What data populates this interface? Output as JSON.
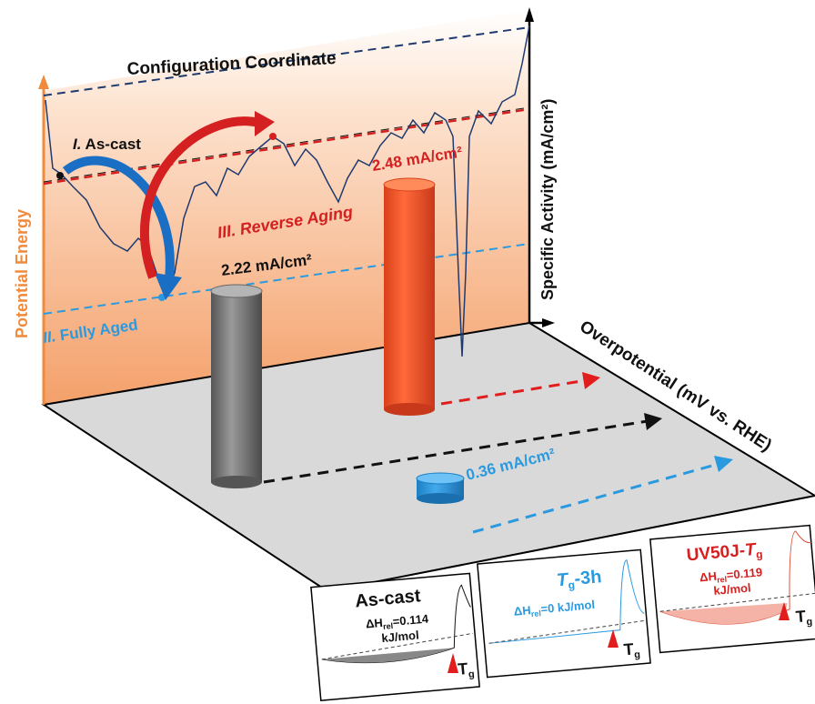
{
  "axes": {
    "top": "Configuration Coordinate",
    "left": "Potential Energy",
    "right": "Specific Activity (mA/cm²)",
    "floor": "Overpotential (mV vs. RHE)"
  },
  "states": [
    {
      "number": "I.",
      "label": "As-cast"
    },
    {
      "number": "II.",
      "label": "Fully Aged"
    },
    {
      "number": "III.",
      "label": "Reverse Aging"
    }
  ],
  "activities": [
    "2.48 mA/cm²",
    "2.22 mA/cm²",
    "0.36 mA/cm²"
  ],
  "insets": [
    {
      "title": "As-cast",
      "delta": "ΔH",
      "sub": "rel",
      "value": "=0.114",
      "unit": "kJ/mol",
      "tg": "T",
      "tg_sub": "g"
    },
    {
      "title_t": "T",
      "title_sub": "g",
      "title_rest": "-3h",
      "delta": "ΔH",
      "sub": "rel",
      "value": "=0 kJ/mol",
      "tg": "T",
      "tg_sub": "g"
    },
    {
      "title_pre": "UV50J-",
      "title_t": "T",
      "title_sub": "g",
      "delta": "ΔH",
      "sub": "rel",
      "value": "=0.119",
      "unit": "kJ/mol",
      "tg": "T",
      "tg_sub": "g"
    }
  ]
}
